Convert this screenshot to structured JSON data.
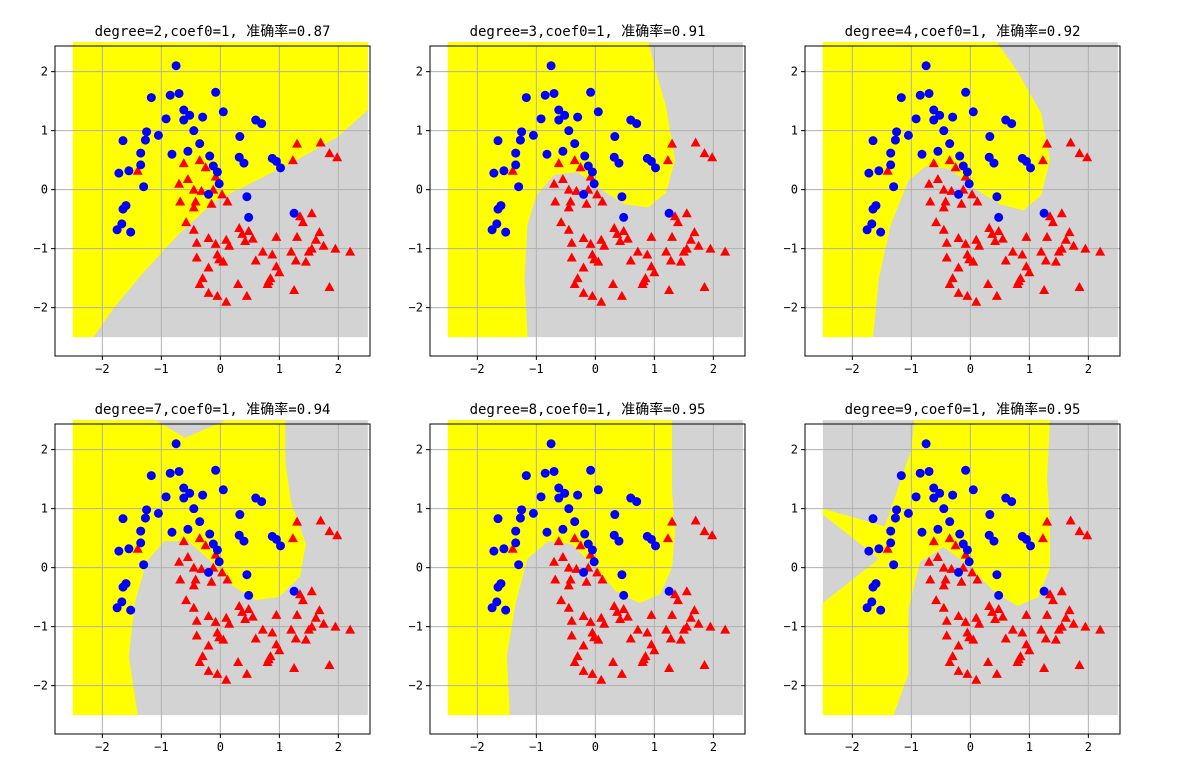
{
  "figure": {
    "background": "#ffffff"
  },
  "colors": {
    "class0_region": "#ffff00",
    "class1_region": "#d3d3d3",
    "class0_marker": "#0000ff",
    "class1_marker": "#ff0000",
    "grid": "#b0b0b0"
  },
  "chart_data": [
    {
      "type": "scatter",
      "title": "degree=2,coef0=1, 准确率=0.87",
      "xlabel": "",
      "ylabel": "",
      "xlim": [
        -2.5,
        2.5
      ],
      "ylim": [
        -2.5,
        2.5
      ],
      "xticks": [
        -2,
        -1,
        0,
        1,
        2
      ],
      "yticks": [
        -2,
        -1,
        0,
        1,
        2
      ],
      "grid": true,
      "decision_boundary": [
        [
          -2.15,
          -2.5
        ],
        [
          -1.8,
          -2.0
        ],
        [
          -1.3,
          -1.4
        ],
        [
          -0.7,
          -0.75
        ],
        [
          -0.1,
          -0.2
        ],
        [
          0.5,
          0.1
        ],
        [
          1.2,
          0.45
        ],
        [
          2.0,
          0.9
        ],
        [
          2.5,
          1.35
        ],
        [
          2.5,
          2.5
        ],
        [
          -2.5,
          2.5
        ],
        [
          -2.5,
          -2.5
        ]
      ]
    },
    {
      "type": "scatter",
      "title": "degree=3,coef0=1, 准确率=0.91",
      "xlabel": "",
      "ylabel": "",
      "xlim": [
        -2.5,
        2.5
      ],
      "ylim": [
        -2.5,
        2.5
      ],
      "xticks": [
        -2,
        -1,
        0,
        1,
        2
      ],
      "yticks": [
        -2,
        -1,
        0,
        1,
        2
      ],
      "grid": true,
      "decision_boundary": [
        [
          -1.15,
          -2.5
        ],
        [
          -1.2,
          -1.5
        ],
        [
          -1.15,
          -0.6
        ],
        [
          -1.0,
          -0.1
        ],
        [
          -0.7,
          0.25
        ],
        [
          -0.3,
          0.3
        ],
        [
          0.1,
          0.0
        ],
        [
          0.5,
          -0.25
        ],
        [
          0.9,
          -0.3
        ],
        [
          1.2,
          -0.05
        ],
        [
          1.35,
          0.5
        ],
        [
          1.2,
          1.4
        ],
        [
          1.0,
          2.1
        ],
        [
          0.9,
          2.5
        ],
        [
          -2.5,
          2.5
        ],
        [
          -2.5,
          -2.5
        ]
      ]
    },
    {
      "type": "scatter",
      "title": "degree=4,coef0=1, 准确率=0.92",
      "xlabel": "",
      "ylabel": "",
      "xlim": [
        -2.5,
        2.5
      ],
      "ylim": [
        -2.5,
        2.5
      ],
      "xticks": [
        -2,
        -1,
        0,
        1,
        2
      ],
      "yticks": [
        -2,
        -1,
        0,
        1,
        2
      ],
      "grid": true,
      "decision_boundary": [
        [
          -1.65,
          -2.5
        ],
        [
          -1.55,
          -1.5
        ],
        [
          -1.35,
          -0.6
        ],
        [
          -1.05,
          0.15
        ],
        [
          -0.75,
          0.4
        ],
        [
          -0.35,
          0.35
        ],
        [
          0.1,
          0.0
        ],
        [
          0.5,
          -0.25
        ],
        [
          0.9,
          -0.35
        ],
        [
          1.2,
          -0.1
        ],
        [
          1.35,
          0.5
        ],
        [
          1.2,
          1.3
        ],
        [
          0.8,
          2.0
        ],
        [
          0.45,
          2.5
        ],
        [
          -2.5,
          2.5
        ],
        [
          -2.5,
          -2.5
        ]
      ]
    },
    {
      "type": "scatter",
      "title": "degree=7,coef0=1, 准确率=0.94",
      "xlabel": "",
      "ylabel": "",
      "xlim": [
        -2.5,
        2.5
      ],
      "ylim": [
        -2.5,
        2.5
      ],
      "xticks": [
        -2,
        -1,
        0,
        1,
        2
      ],
      "yticks": [
        -2,
        -1,
        0,
        1,
        2
      ],
      "grid": true,
      "decision_boundary": [
        [
          -1.4,
          -2.5
        ],
        [
          -1.55,
          -1.5
        ],
        [
          -1.45,
          -0.6
        ],
        [
          -1.25,
          0.1
        ],
        [
          -0.95,
          0.45
        ],
        [
          -0.55,
          0.45
        ],
        [
          -0.15,
          0.1
        ],
        [
          0.2,
          -0.3
        ],
        [
          0.6,
          -0.55
        ],
        [
          1.0,
          -0.5
        ],
        [
          1.35,
          -0.15
        ],
        [
          1.45,
          0.4
        ],
        [
          1.2,
          1.1
        ],
        [
          1.1,
          1.8
        ],
        [
          1.1,
          2.5
        ],
        [
          0.1,
          2.5
        ],
        [
          -0.6,
          2.2
        ],
        [
          -1.1,
          2.5
        ],
        [
          -2.5,
          2.5
        ],
        [
          -2.5,
          -2.5
        ]
      ]
    },
    {
      "type": "scatter",
      "title": "degree=8,coef0=1, 准确率=0.95",
      "xlabel": "",
      "ylabel": "",
      "xlim": [
        -2.5,
        2.5
      ],
      "ylim": [
        -2.5,
        2.5
      ],
      "xticks": [
        -2,
        -1,
        0,
        1,
        2
      ],
      "yticks": [
        -2,
        -1,
        0,
        1,
        2
      ],
      "grid": true,
      "decision_boundary": [
        [
          -1.45,
          -2.5
        ],
        [
          -1.5,
          -1.5
        ],
        [
          -1.35,
          -0.6
        ],
        [
          -1.15,
          0.15
        ],
        [
          -0.8,
          0.45
        ],
        [
          -0.4,
          0.4
        ],
        [
          -0.05,
          0.05
        ],
        [
          0.35,
          -0.4
        ],
        [
          0.75,
          -0.6
        ],
        [
          1.1,
          -0.45
        ],
        [
          1.3,
          0.0
        ],
        [
          1.35,
          0.6
        ],
        [
          1.3,
          1.3
        ],
        [
          1.3,
          2.5
        ],
        [
          -2.5,
          2.5
        ],
        [
          -2.5,
          -2.5
        ]
      ]
    },
    {
      "type": "scatter",
      "title": "degree=9,coef0=1, 准确率=0.95",
      "xlabel": "",
      "ylabel": "",
      "xlim": [
        -2.5,
        2.5
      ],
      "ylim": [
        -2.5,
        2.5
      ],
      "xticks": [
        -2,
        -1,
        0,
        1,
        2
      ],
      "yticks": [
        -2,
        -1,
        0,
        1,
        2
      ],
      "grid": true,
      "decision_boundary": [
        [
          -1.3,
          -2.5
        ],
        [
          -1.05,
          -1.8
        ],
        [
          -1.05,
          -0.7
        ],
        [
          -0.85,
          0.1
        ],
        [
          -0.45,
          0.35
        ],
        [
          -0.05,
          0.05
        ],
        [
          0.4,
          -0.4
        ],
        [
          0.8,
          -0.65
        ],
        [
          1.15,
          -0.5
        ],
        [
          1.35,
          0.0
        ],
        [
          1.35,
          0.7
        ],
        [
          1.3,
          1.5
        ],
        [
          1.35,
          2.5
        ],
        [
          -0.95,
          2.5
        ],
        [
          -1.0,
          2.0
        ],
        [
          -1.45,
          0.7
        ],
        [
          -2.5,
          1.0
        ],
        [
          -2.5,
          0.9
        ],
        [
          -1.55,
          0.15
        ],
        [
          -2.5,
          -0.6
        ],
        [
          -2.5,
          -2.5
        ]
      ]
    }
  ],
  "samples": {
    "class0_blue_circles": [
      [
        -0.75,
        2.1
      ],
      [
        -0.85,
        1.6
      ],
      [
        -0.7,
        1.63
      ],
      [
        -0.08,
        1.65
      ],
      [
        -1.17,
        1.56
      ],
      [
        -0.92,
        1.2
      ],
      [
        -0.62,
        1.35
      ],
      [
        -0.52,
        1.26
      ],
      [
        -0.62,
        1.18
      ],
      [
        0.05,
        1.32
      ],
      [
        0.6,
        1.18
      ],
      [
        0.7,
        1.12
      ],
      [
        -0.3,
        1.23
      ],
      [
        -0.45,
        1.0
      ],
      [
        -1.25,
        0.98
      ],
      [
        -1.27,
        0.84
      ],
      [
        -1.65,
        0.83
      ],
      [
        -1.05,
        0.92
      ],
      [
        -0.35,
        0.78
      ],
      [
        -0.18,
        0.57
      ],
      [
        0.33,
        0.9
      ],
      [
        -1.35,
        0.62
      ],
      [
        -1.35,
        0.42
      ],
      [
        -1.55,
        0.32
      ],
      [
        -1.72,
        0.28
      ],
      [
        -0.12,
        0.4
      ],
      [
        -0.05,
        0.3
      ],
      [
        0.32,
        0.55
      ],
      [
        0.4,
        0.45
      ],
      [
        -0.55,
        0.65
      ],
      [
        -0.82,
        0.6
      ],
      [
        0.88,
        0.53
      ],
      [
        0.95,
        0.48
      ],
      [
        1.02,
        0.37
      ],
      [
        0.45,
        -0.12
      ],
      [
        0.48,
        -0.47
      ],
      [
        -1.3,
        0.05
      ],
      [
        -1.6,
        -0.27
      ],
      [
        -1.65,
        -0.33
      ],
      [
        -1.67,
        -0.58
      ],
      [
        -1.52,
        -0.72
      ],
      [
        -1.75,
        -0.68
      ],
      [
        1.25,
        -0.4
      ],
      [
        -0.02,
        0.1
      ],
      [
        -0.2,
        -0.08
      ]
    ],
    "class1_red_triangles": [
      [
        1.3,
        0.78
      ],
      [
        1.7,
        0.8
      ],
      [
        1.85,
        0.62
      ],
      [
        1.98,
        0.55
      ],
      [
        1.23,
        0.5
      ],
      [
        -1.4,
        0.32
      ],
      [
        -0.62,
        0.45
      ],
      [
        -0.35,
        0.5
      ],
      [
        -0.25,
        0.38
      ],
      [
        -0.08,
        0.22
      ],
      [
        -0.55,
        0.18
      ],
      [
        -0.7,
        0.1
      ],
      [
        -0.45,
        0.0
      ],
      [
        -0.12,
        0.0
      ],
      [
        -0.32,
        -0.02
      ],
      [
        -0.68,
        -0.2
      ],
      [
        -0.42,
        -0.2
      ],
      [
        -0.45,
        -0.3
      ],
      [
        -0.15,
        -0.24
      ],
      [
        0.03,
        -0.08
      ],
      [
        0.12,
        -0.2
      ],
      [
        -0.58,
        -0.55
      ],
      [
        -0.45,
        -0.68
      ],
      [
        -0.4,
        -0.9
      ],
      [
        -0.2,
        -0.82
      ],
      [
        -0.08,
        -0.92
      ],
      [
        0.32,
        -0.65
      ],
      [
        0.37,
        -0.75
      ],
      [
        0.48,
        -0.7
      ],
      [
        0.42,
        -0.87
      ],
      [
        0.55,
        -0.83
      ],
      [
        1.35,
        -0.45
      ],
      [
        1.4,
        -0.55
      ],
      [
        1.55,
        -0.4
      ],
      [
        1.62,
        -0.85
      ],
      [
        1.75,
        -0.95
      ],
      [
        0.95,
        -0.8
      ],
      [
        0.88,
        -1.1
      ],
      [
        0.95,
        -1.3
      ],
      [
        0.85,
        -1.5
      ],
      [
        0.82,
        -1.55
      ],
      [
        0.1,
        -0.85
      ],
      [
        0.15,
        -0.95
      ],
      [
        -0.05,
        -1.1
      ],
      [
        1.2,
        -1.05
      ],
      [
        1.28,
        -1.2
      ],
      [
        1.45,
        -1.22
      ],
      [
        1.5,
        -1.05
      ],
      [
        1.95,
        -1.0
      ],
      [
        2.2,
        -1.05
      ],
      [
        0.3,
        -1.6
      ],
      [
        0.45,
        -1.8
      ],
      [
        0.8,
        -1.6
      ],
      [
        1.0,
        -1.4
      ],
      [
        1.25,
        -1.7
      ],
      [
        1.85,
        -1.65
      ],
      [
        -0.35,
        -1.6
      ],
      [
        -0.2,
        -1.75
      ],
      [
        -0.05,
        -1.8
      ],
      [
        0.1,
        -1.9
      ],
      [
        -0.3,
        -1.5
      ],
      [
        -0.2,
        -1.32
      ],
      [
        0.05,
        -1.22
      ],
      [
        -0.02,
        -1.18
      ],
      [
        -0.4,
        -1.15
      ],
      [
        0.6,
        -1.2
      ],
      [
        0.72,
        -1.05
      ],
      [
        1.55,
        -1.0
      ],
      [
        1.3,
        -0.8
      ],
      [
        1.68,
        -0.72
      ]
    ]
  }
}
